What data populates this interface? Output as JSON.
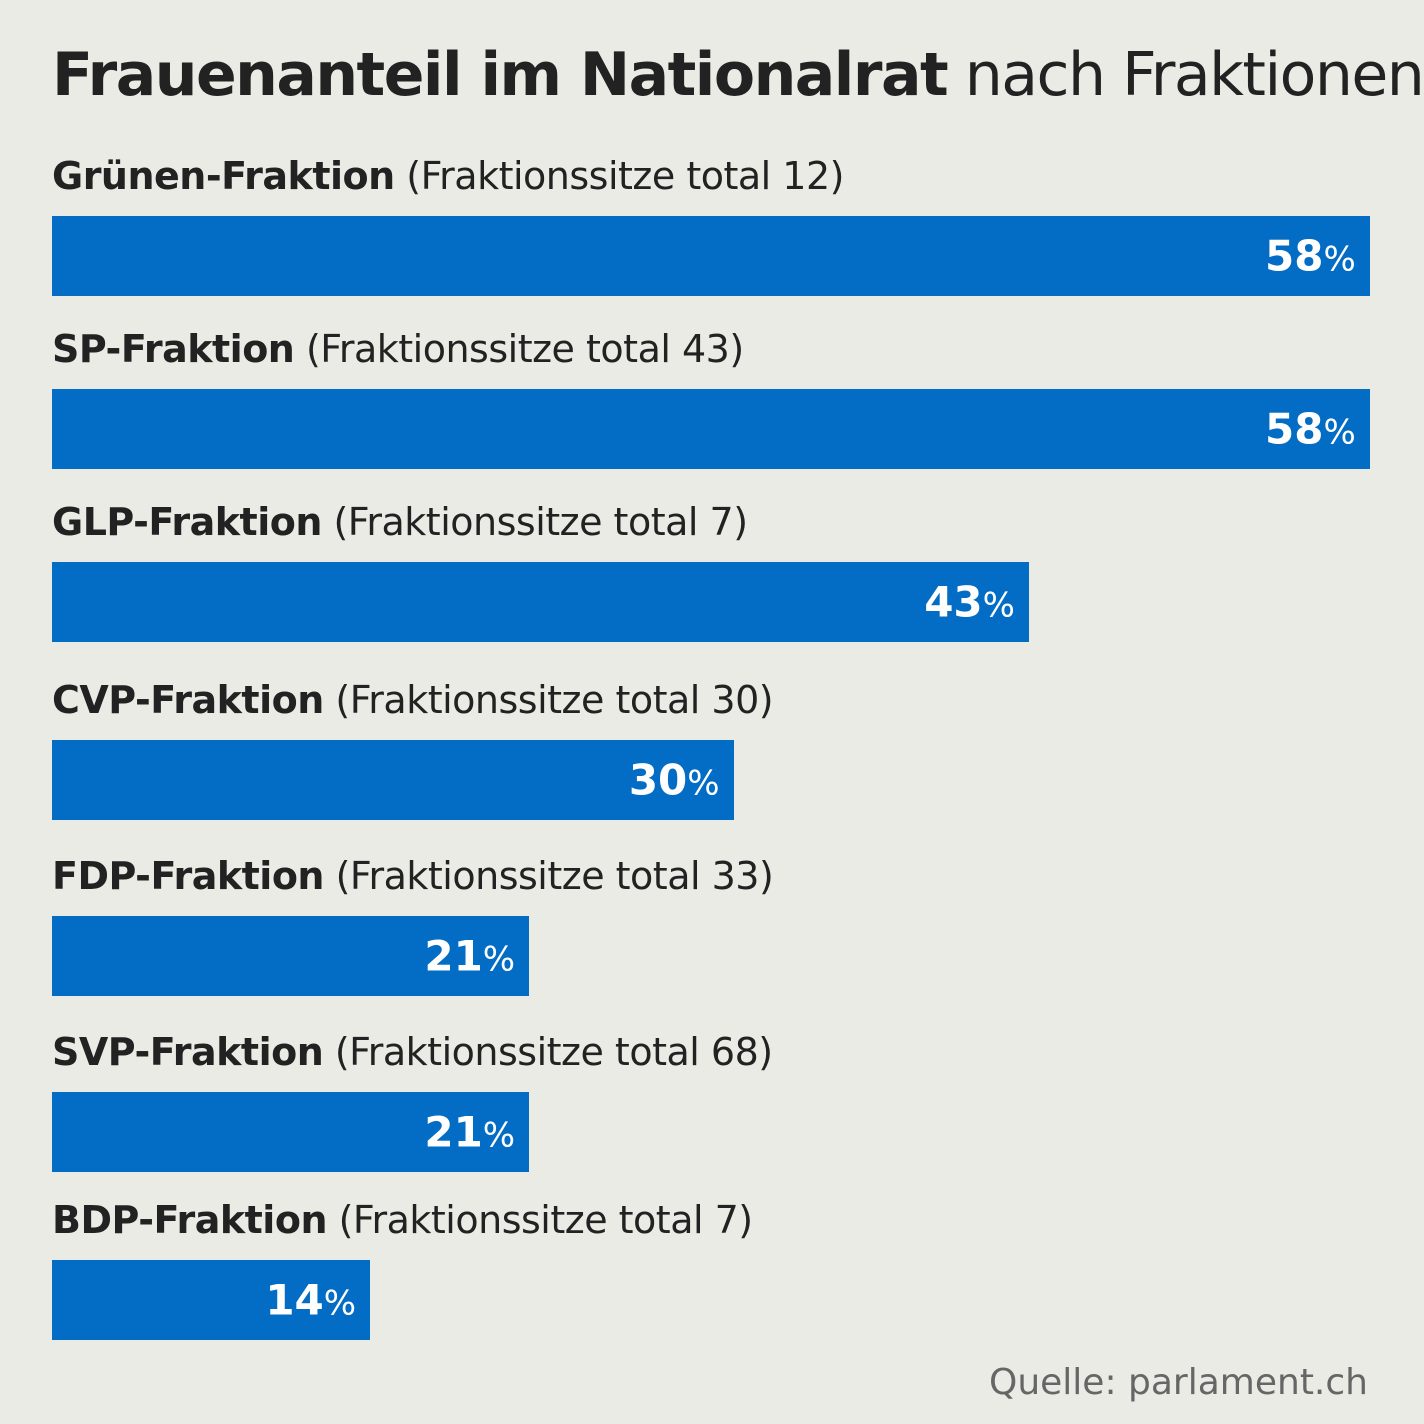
{
  "chart_data": {
    "type": "bar",
    "orientation": "horizontal",
    "title_bold": "Frauenanteil im Nationalrat",
    "title_rest": "nach Fraktionen",
    "categories": [
      "Grünen-Fraktion",
      "SP-Fraktion",
      "GLP-Fraktion",
      "CVP-Fraktion",
      "FDP-Fraktion",
      "SVP-Fraktion",
      "BDP-Fraktion"
    ],
    "details": [
      "(Fraktionssitze total 12)",
      "(Fraktionssitze total 43)",
      "(Fraktionssitze total 7)",
      "(Fraktionssitze total 30)",
      "(Fraktionssitze total 33)",
      "(Fraktionssitze total 68)",
      "(Fraktionssitze total 7)"
    ],
    "values": [
      58,
      58,
      43,
      30,
      21,
      21,
      14
    ],
    "unit": "%",
    "bar_color": "#036cc4",
    "background": "#ebebe6",
    "grid": false,
    "source": "Quelle: parlament.ch"
  }
}
